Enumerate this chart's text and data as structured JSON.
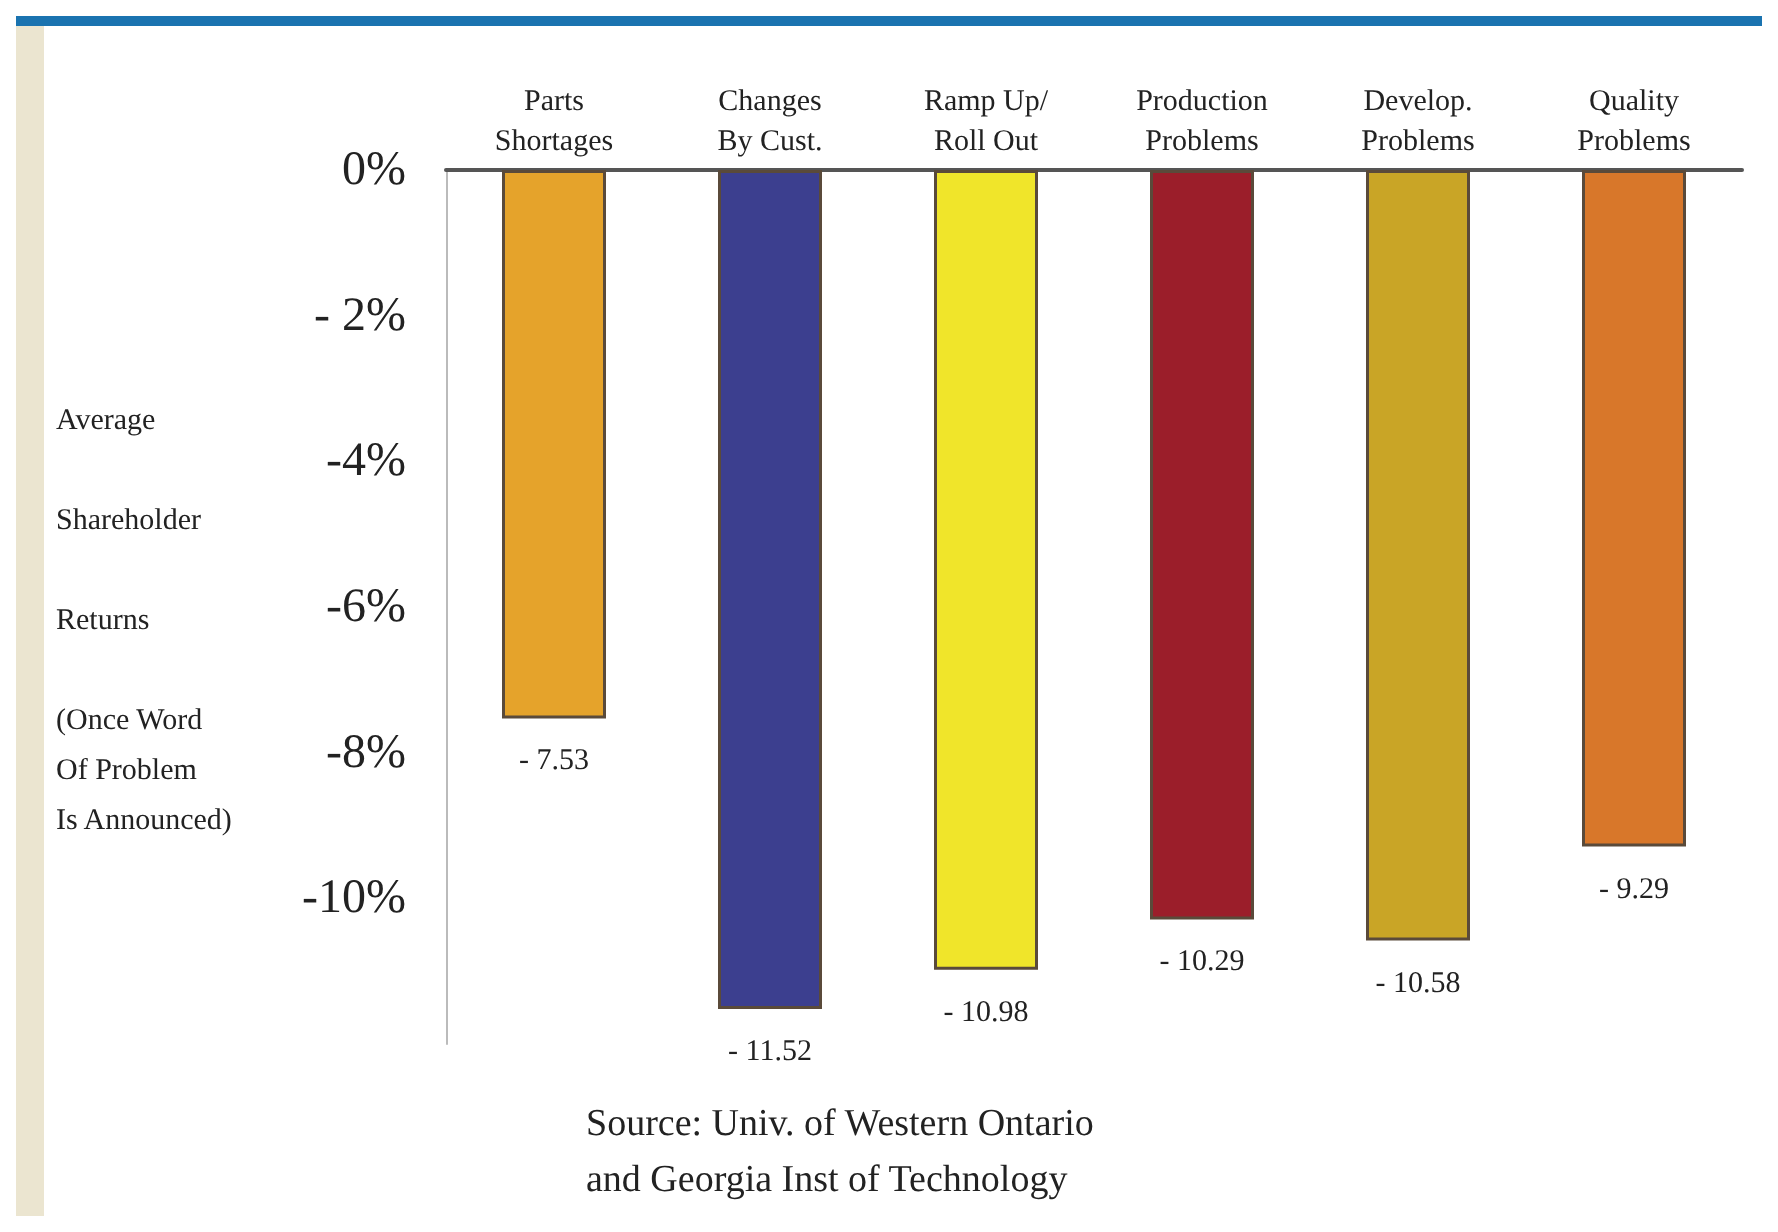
{
  "chart_data": {
    "type": "bar",
    "ylabel": "Average\n\nShareholder\n\nReturns\n\n(Once Word\nOf Problem\nIs Announced)",
    "categories": [
      "Parts\nShortages",
      "Changes\nBy Cust.",
      "Ramp Up/\nRoll Out",
      "Production\nProblems",
      "Develop.\nProblems",
      "Quality\nProblems"
    ],
    "values": [
      -7.53,
      -11.52,
      -10.98,
      -10.29,
      -10.58,
      -9.29
    ],
    "colors": [
      "#e5a32b",
      "#3c3f8f",
      "#f0e52a",
      "#9b1e2a",
      "#c9a526",
      "#d8772a"
    ],
    "value_labels": [
      "- 7.53",
      "- 11.52",
      "- 10.98",
      "- 10.29",
      "- 10.58",
      "- 9.29"
    ],
    "ylim": [
      -12,
      0
    ],
    "yticks": [
      {
        "value": 0,
        "label": "0%"
      },
      {
        "value": -2,
        "label": "- 2%"
      },
      {
        "value": -4,
        "label": "-4%"
      },
      {
        "value": -6,
        "label": "-6%"
      },
      {
        "value": -8,
        "label": "-8%"
      },
      {
        "value": -10,
        "label": "-10%"
      }
    ],
    "grid": false,
    "annotations": [
      "Source: Univ. of Western Ontario\nand Georgia Inst of Technology"
    ]
  }
}
